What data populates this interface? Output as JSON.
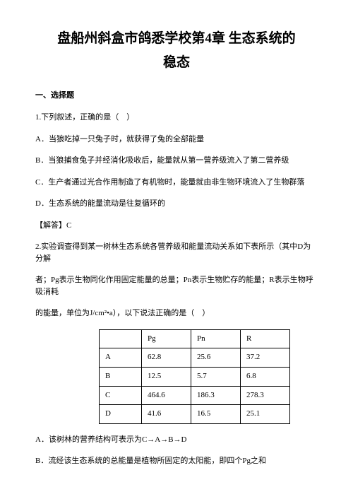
{
  "title_line1": "盘船州斜盒市鸽悉学校第4章 生态系统的",
  "title_line2": "稳态",
  "section1": "一、选择题",
  "q1": {
    "stem": "1.下列叙述，正确的是（　）",
    "optA": "A．当狼吃掉一只兔子时，就获得了兔的全部能量",
    "optB": "B．当狼捕食兔子并经消化吸收后，能量就从第一营养级流入了第二营养级",
    "optC": "C．生产者通过光合作用制造了有机物时，能量就由非生物环境流入了生物群落",
    "optD": "D．生态系统的能量流动是往复循环的",
    "answer": "【解答】C"
  },
  "q2": {
    "stem1": "2.实验调查得到某一树林生态系统各营养级和能量流动关系如下表所示（其中D为分解",
    "stem2": "者；Pg表示生物同化作用固定能量的总量；Pn表示生物贮存的能量；R表示生物呼吸消耗",
    "stem3": "的能量，单位为J/cm²•a），以下说法正确的是（　）",
    "optA": "A．该树林的营养结构可表示为C→A→B→D",
    "optB": "B．流经该生态系统的总能量是植物所固定的太阳能，即四个Pg之和"
  },
  "table": {
    "headers": [
      "",
      "Pg",
      "Pn",
      "R"
    ],
    "rows": [
      [
        "A",
        "62.8",
        "25.6",
        "37.2"
      ],
      [
        "B",
        "12.5",
        "5.7",
        "6.8"
      ],
      [
        "C",
        "464.6",
        "186.3",
        "278.3"
      ],
      [
        "D",
        "41.6",
        "16.5",
        "25.1"
      ]
    ]
  }
}
